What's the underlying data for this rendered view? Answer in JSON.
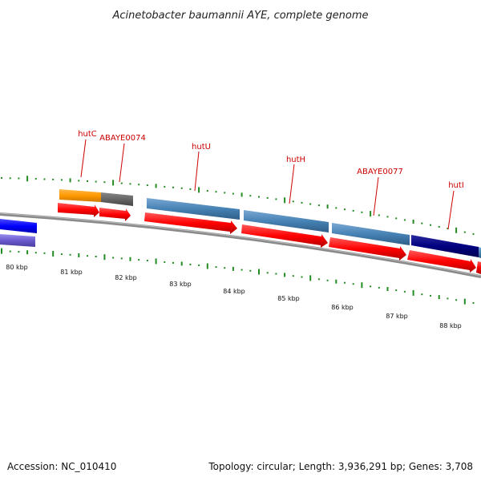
{
  "title": "Acinetobacter baumannii AYE, complete genome",
  "footer": {
    "accession": "Accession: NC_010410",
    "summary": "Topology: circular; Length: 3,936,291 bp; Genes: 3,708"
  },
  "gene_labels": [
    {
      "id": "hutC",
      "text": "hutC"
    },
    {
      "id": "ABAYE0074",
      "text": "ABAYE0074"
    },
    {
      "id": "hutU",
      "text": "hutU"
    },
    {
      "id": "hutH",
      "text": "hutH"
    },
    {
      "id": "ABAYE0077",
      "text": "ABAYE0077"
    },
    {
      "id": "hutI",
      "text": "hutI"
    }
  ],
  "position_labels": [
    "80 kbp",
    "81 kbp",
    "82 kbp",
    "83 kbp",
    "84 kbp",
    "85 kbp",
    "86 kbp",
    "87 kbp",
    "88 kbp"
  ],
  "colors": {
    "gene_label": "#cc0000",
    "cds": "#ff0000",
    "tick": "#228b22",
    "backbone": "#808080",
    "gene_orange": "#ff9900",
    "gene_gray": "#666666",
    "gene_steelblue": "#4682b4",
    "gene_navy": "#000080",
    "gene_blue": "#0000ff",
    "gene_slate": "#6a5acd"
  }
}
